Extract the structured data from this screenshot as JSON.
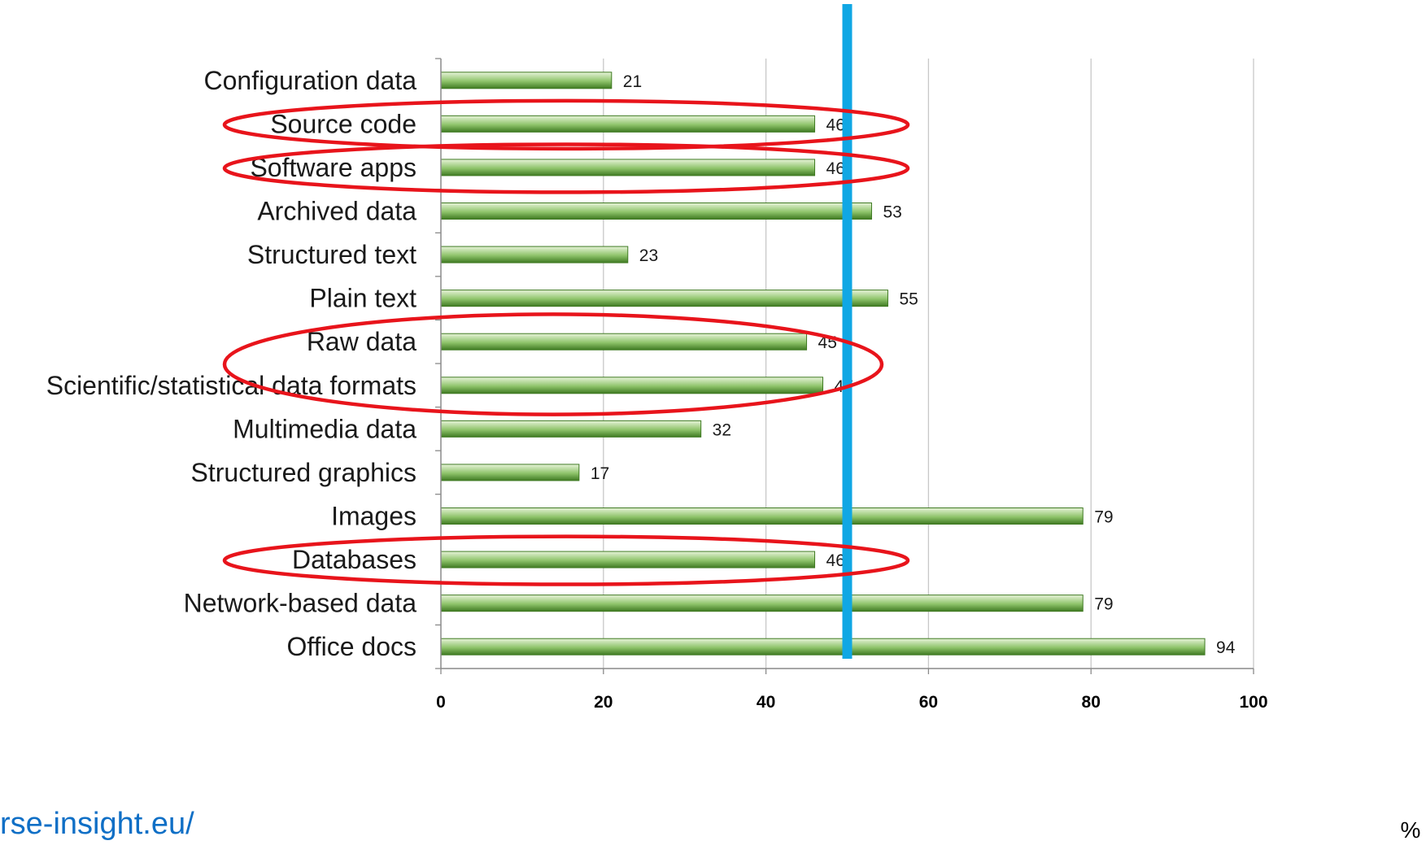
{
  "chart_data": {
    "type": "bar",
    "orientation": "horizontal",
    "categories": [
      "Configuration data",
      "Source code",
      "Software apps",
      "Archived data",
      "Structured text",
      "Plain text",
      "Raw data",
      "Scientific/statistical data formats",
      "Multimedia data",
      "Structured graphics",
      "Images",
      "Databases",
      "Network-based data",
      "Office docs"
    ],
    "values": [
      21,
      46,
      46,
      53,
      23,
      55,
      45,
      47,
      32,
      17,
      79,
      46,
      79,
      94
    ],
    "value_labels": [
      "21",
      "46",
      "46",
      "53",
      "23",
      "55",
      "45",
      "47",
      "32",
      "17",
      "79",
      "46",
      "79",
      "94"
    ],
    "xlim": [
      0,
      100
    ],
    "xticks": [
      "0",
      "20",
      "40",
      "60",
      "80",
      "100"
    ],
    "xunit": "%",
    "grid": true,
    "reference_line": {
      "value": 50,
      "color": "#10a7e4"
    },
    "highlighted_groups": [
      [
        "Source code"
      ],
      [
        "Software apps"
      ],
      [
        "Raw data",
        "Scientific/statistical data formats"
      ],
      [
        "Databases"
      ]
    ],
    "colors": {
      "bar_light": "#e6f3d8",
      "bar_mid": "#8fc46b",
      "bar_dark": "#3f7a22",
      "highlight": "#e8141b",
      "grid": "#c8c8c8",
      "axis": "#8a8a8a"
    }
  },
  "source_url_fragment": "rse-insight.eu/",
  "url_color": "#0f6fc6"
}
